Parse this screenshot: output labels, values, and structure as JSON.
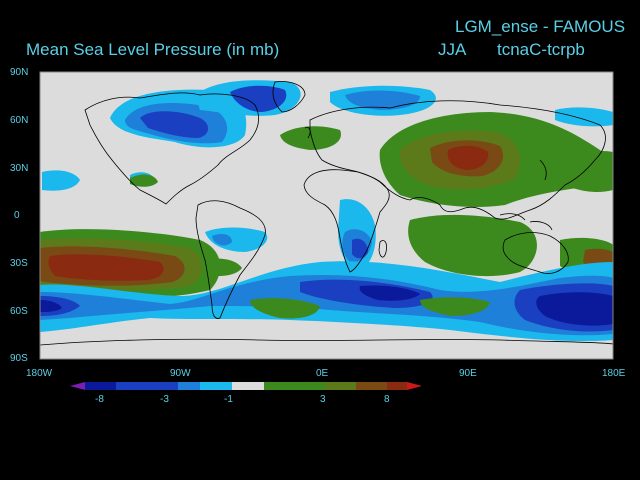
{
  "header": {
    "title_right": "LGM_ense - FAMOUS",
    "title_left": "Mean Sea Level Pressure (in mb)",
    "season": "JJA",
    "run_id": "tcnaC-tcrpb"
  },
  "axes": {
    "lat_labels": [
      "90N",
      "60N",
      "30N",
      "0",
      "30S",
      "60S",
      "90S"
    ],
    "lon_labels": [
      "180W",
      "90W",
      "0E",
      "90E",
      "180E"
    ]
  },
  "colorbar": {
    "labels": [
      "-8",
      "-3",
      "-1",
      "3",
      "8"
    ],
    "colors": [
      "#7a1fb0",
      "#0a1a9a",
      "#1a3fc0",
      "#1e80d8",
      "#1ab8ec",
      "#dcdcdc",
      "#3c8a1e",
      "#5d7a1a",
      "#7a4a14",
      "#8a2a10",
      "#cc1a1a"
    ]
  },
  "palette": {
    "neutral": "#dcdcdc",
    "light_blue": "#1ab8ec",
    "mid_blue": "#1e80d8",
    "blue": "#1a3fc0",
    "dark_blue": "#0a1a9a",
    "green": "#3c8a1e",
    "olive": "#5d7a1a",
    "brown": "#7a4a14",
    "dark_red": "#8a2a10",
    "background": "#000000",
    "label_text": "#5ad0e6"
  }
}
